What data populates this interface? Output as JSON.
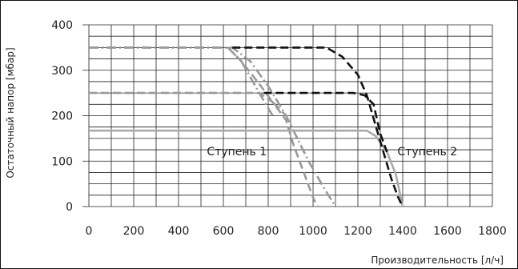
{
  "chart_data": {
    "type": "line",
    "xlabel": "Производительность [л/ч]",
    "ylabel": "Остаточный напор [мбар]",
    "xlim": [
      0,
      1800
    ],
    "ylim": [
      0,
      400
    ],
    "x_ticks": [
      0,
      200,
      400,
      600,
      800,
      1000,
      1200,
      1400,
      1600,
      1800
    ],
    "y_ticks": [
      0,
      100,
      200,
      300,
      400
    ],
    "grid": true,
    "annotations": [
      {
        "text": "Ступень 1",
        "x": 660,
        "y": 122
      },
      {
        "text": "Ступень 2",
        "x": 1510,
        "y": 122
      }
    ],
    "series": [
      {
        "stage": 1,
        "style": "dash-dot",
        "color": "#999999",
        "points": [
          [
            0,
            350
          ],
          [
            640,
            350
          ],
          [
            720,
            320
          ],
          [
            800,
            265
          ],
          [
            880,
            200
          ],
          [
            930,
            150
          ],
          [
            980,
            100
          ],
          [
            1050,
            40
          ],
          [
            1100,
            0
          ]
        ]
      },
      {
        "stage": 1,
        "style": "dash",
        "color": "#999999",
        "points": [
          [
            0,
            250
          ],
          [
            760,
            250
          ],
          [
            820,
            230
          ],
          [
            880,
            190
          ],
          [
            910,
            140
          ],
          [
            940,
            100
          ],
          [
            1000,
            20
          ],
          [
            1020,
            0
          ]
        ]
      },
      {
        "stage": 1,
        "style": "solid",
        "color": "#aaaaaa",
        "points": [
          [
            0,
            167
          ],
          [
            1240,
            167
          ],
          [
            1280,
            155
          ],
          [
            1330,
            120
          ],
          [
            1370,
            70
          ],
          [
            1400,
            0
          ]
        ]
      },
      {
        "stage": 2,
        "style": "dash-dot",
        "color": "#999999",
        "points": [
          [
            0,
            350
          ],
          [
            620,
            350
          ],
          [
            680,
            320
          ],
          [
            760,
            250
          ],
          [
            820,
            200
          ]
        ]
      },
      {
        "stage": 2,
        "style": "dash",
        "color": "#999999",
        "points": [
          [
            620,
            350
          ],
          [
            680,
            320
          ],
          [
            760,
            270
          ],
          [
            820,
            230
          ],
          [
            880,
            200
          ]
        ]
      },
      {
        "stage": 2,
        "style": "dash",
        "color": "#111111",
        "points": [
          [
            640,
            350
          ],
          [
            1060,
            350
          ],
          [
            1130,
            330
          ],
          [
            1200,
            290
          ],
          [
            1240,
            245
          ],
          [
            1290,
            160
          ],
          [
            1320,
            110
          ],
          [
            1350,
            60
          ],
          [
            1380,
            20
          ],
          [
            1400,
            0
          ]
        ]
      },
      {
        "stage": 2,
        "style": "dash",
        "color": "#111111",
        "points": [
          [
            780,
            250
          ],
          [
            1180,
            250
          ],
          [
            1230,
            245
          ],
          [
            1270,
            225
          ],
          [
            1300,
            160
          ],
          [
            1330,
            120
          ]
        ]
      }
    ]
  }
}
